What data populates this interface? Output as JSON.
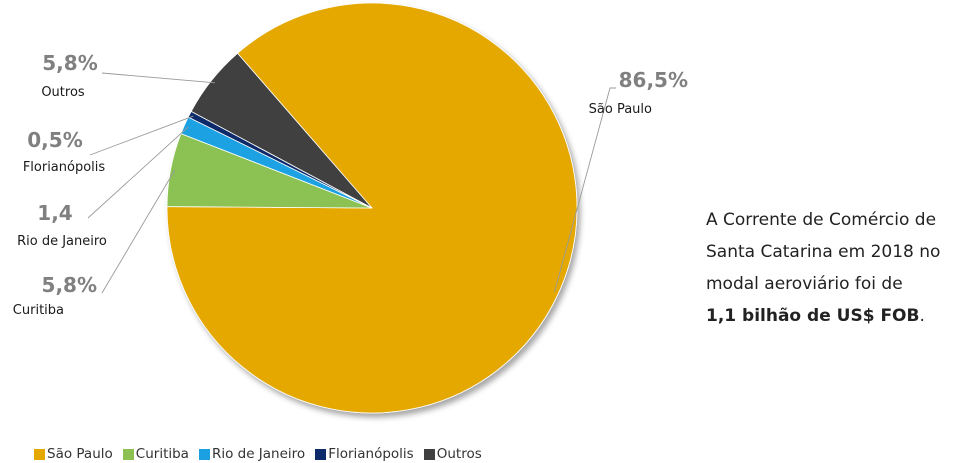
{
  "chart_data": {
    "type": "pie",
    "title": "",
    "slices": [
      {
        "name": "São Paulo",
        "value": 86.5,
        "label": "86,5%",
        "color": "#E4A800"
      },
      {
        "name": "Curitiba",
        "value": 5.8,
        "label": "5,8%",
        "color": "#8CC152"
      },
      {
        "name": "Rio de Janeiro",
        "value": 1.4,
        "label": "1,4",
        "color": "#1BA1E2"
      },
      {
        "name": "Florianópolis",
        "value": 0.5,
        "label": "0,5%",
        "color": "#0D2A6B"
      },
      {
        "name": "Outros",
        "value": 5.8,
        "label": "5,8%",
        "color": "#404040"
      }
    ],
    "legend_position": "bottom-left"
  },
  "side_text": {
    "line1": "A Corrente de Comércio de",
    "line2": "Santa Catarina em 2018 no",
    "line3": "modal aeroviário foi de",
    "line4_bold": "1,1 bilhão de US$ FOB",
    "line4_end": "."
  }
}
